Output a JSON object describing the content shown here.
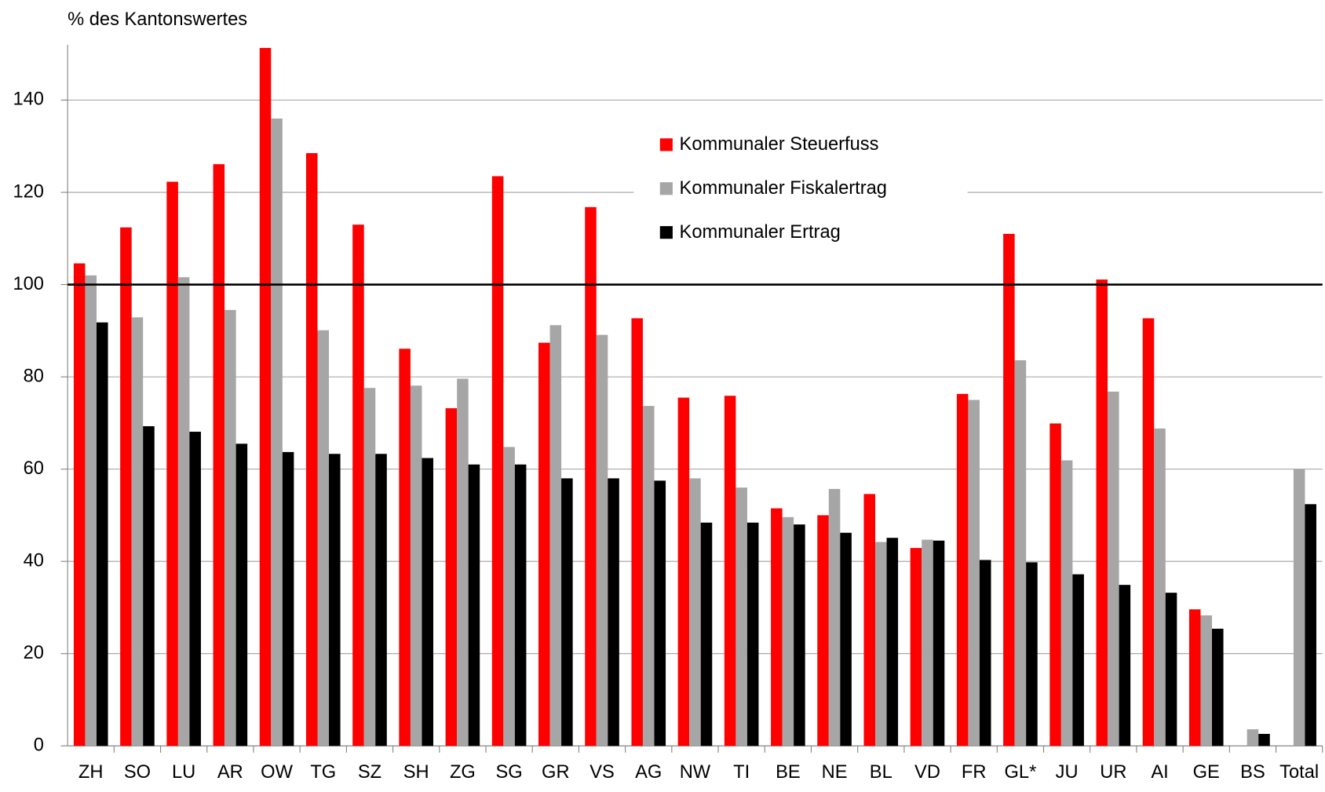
{
  "chart_data": {
    "type": "bar",
    "ylabel": "% des Kantonswertes",
    "categories": [
      "ZH",
      "SO",
      "LU",
      "AR",
      "OW",
      "TG",
      "SZ",
      "SH",
      "ZG",
      "SG",
      "GR",
      "VS",
      "AG",
      "NW",
      "TI",
      "BE",
      "NE",
      "BL",
      "VD",
      "FR",
      "GL*",
      "JU",
      "UR",
      "AI",
      "GE",
      "BS",
      "Total"
    ],
    "series": [
      {
        "name": "Kommunaler Steuerfuss",
        "color": "#ff0000",
        "values": [
          104.6,
          112.4,
          122.3,
          126.1,
          151.3,
          128.5,
          113,
          86.1,
          73.2,
          123.5,
          87.4,
          116.8,
          92.7,
          75.5,
          75.9,
          51.5,
          50,
          54.6,
          42.9,
          76.3,
          111,
          69.9,
          101.1,
          92.7,
          29.6,
          null,
          null
        ]
      },
      {
        "name": "Kommunaler Fiskalertrag",
        "color": "#a6a6a6",
        "values": [
          102,
          92.9,
          101.6,
          94.5,
          136,
          90.1,
          77.6,
          78.1,
          79.6,
          64.8,
          91.2,
          89.1,
          73.7,
          58,
          56,
          49.6,
          55.7,
          44.2,
          44.7,
          75,
          83.6,
          61.9,
          76.8,
          68.8,
          28.3,
          3.6,
          60
        ]
      },
      {
        "name": "Kommunaler Ertrag",
        "color": "#000000",
        "values": [
          91.8,
          69.3,
          68.1,
          65.5,
          63.7,
          63.3,
          63.3,
          62.4,
          61,
          61,
          58,
          58,
          57.5,
          48.4,
          48.4,
          48,
          46.2,
          45.1,
          44.5,
          40.3,
          39.8,
          37.2,
          34.9,
          33.2,
          25.4,
          2.6,
          52.4
        ]
      }
    ],
    "ylim": [
      0,
      152
    ],
    "yticks": [
      0,
      20,
      40,
      60,
      80,
      100,
      120,
      140
    ],
    "grid": true,
    "reference_line": 100
  }
}
